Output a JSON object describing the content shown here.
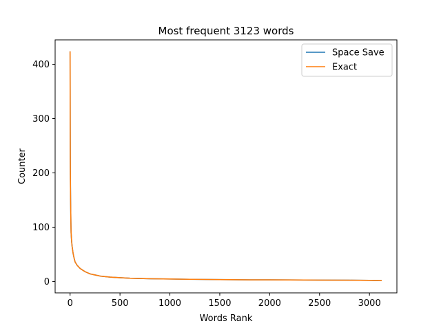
{
  "chart_data": {
    "type": "line",
    "title": "Most frequent 3123 words",
    "xlabel": "Words Rank",
    "ylabel": "Counter",
    "xlim": [
      -150,
      3275
    ],
    "ylim": [
      -21,
      445
    ],
    "xticks": [
      0,
      500,
      1000,
      1500,
      2000,
      2500,
      3000
    ],
    "yticks": [
      0,
      100,
      200,
      300,
      400
    ],
    "grid": false,
    "legend_position": "top-right",
    "series": [
      {
        "name": "Space Save",
        "color": "#1f77b4",
        "x": [
          0,
          1,
          2,
          3,
          5,
          8,
          10,
          15,
          20,
          30,
          40,
          50,
          70,
          100,
          150,
          200,
          250,
          300,
          400,
          500,
          600,
          700,
          800,
          1000,
          1200,
          1500,
          1800,
          2000,
          2200,
          2500,
          2800,
          3000,
          3123
        ],
        "y": [
          424,
          300,
          230,
          190,
          150,
          110,
          90,
          75,
          65,
          52,
          43,
          36,
          30,
          24,
          18,
          14,
          12,
          10,
          8,
          7,
          6,
          5.5,
          5,
          4.5,
          4,
          3.5,
          3,
          3,
          2.8,
          2.5,
          2.3,
          2,
          1.5
        ]
      },
      {
        "name": "Exact",
        "color": "#ff7f0e",
        "x": [
          0,
          1,
          2,
          3,
          5,
          8,
          10,
          15,
          20,
          30,
          40,
          50,
          70,
          100,
          150,
          200,
          250,
          300,
          400,
          500,
          600,
          700,
          800,
          1000,
          1200,
          1500,
          1800,
          2000,
          2200,
          2500,
          2800,
          3000,
          3123
        ],
        "y": [
          424,
          300,
          230,
          190,
          150,
          110,
          90,
          75,
          65,
          52,
          43,
          36,
          30,
          24,
          18,
          14,
          12,
          10,
          8,
          7,
          6,
          5.5,
          5,
          4.5,
          4,
          3.5,
          3,
          3,
          2.8,
          2.5,
          2.3,
          2,
          1.5
        ]
      }
    ]
  }
}
